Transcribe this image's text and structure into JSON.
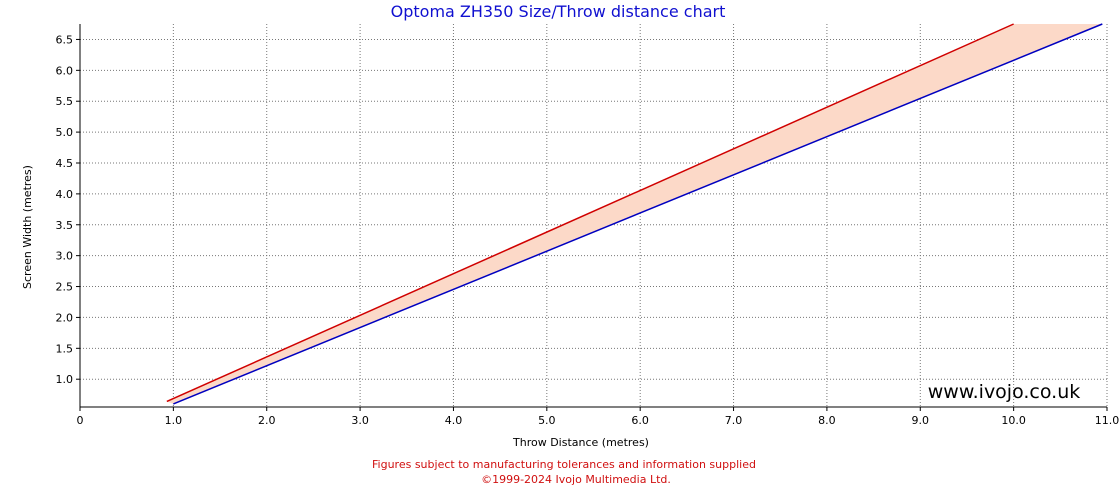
{
  "chart_data": {
    "type": "area",
    "title": "Optoma ZH350 Size/Throw distance chart",
    "xlabel": "Throw Distance (metres)",
    "ylabel": "Screen Width (metres)",
    "xlim": [
      0,
      11.0
    ],
    "ylim": [
      0.55,
      6.75
    ],
    "x_ticks": [
      0,
      1.0,
      2.0,
      3.0,
      4.0,
      5.0,
      6.0,
      7.0,
      8.0,
      9.0,
      10.0,
      11.0
    ],
    "x_tick_labels": [
      "0",
      "1.0",
      "2.0",
      "3.0",
      "4.0",
      "5.0",
      "6.0",
      "7.0",
      "8.0",
      "9.0",
      "10.0",
      "11.0"
    ],
    "y_ticks": [
      1.0,
      1.5,
      2.0,
      2.5,
      3.0,
      3.5,
      4.0,
      4.5,
      5.0,
      5.5,
      6.0,
      6.5
    ],
    "y_tick_labels": [
      "1.0",
      "1.5",
      "2.0",
      "2.5",
      "3.0",
      "3.5",
      "4.0",
      "4.5",
      "5.0",
      "5.5",
      "6.0",
      "6.5"
    ],
    "grid": true,
    "series": [
      {
        "color": "#d00000",
        "x": [
          0.93,
          10.0
        ],
        "y": [
          0.64,
          6.75
        ]
      },
      {
        "color": "#0000c0",
        "x": [
          1.0,
          10.95
        ],
        "y": [
          0.6,
          6.75
        ]
      }
    ],
    "fill_color": "#fcd9c8",
    "watermark": "www.ivojo.co.uk",
    "footer_line1": "Figures subject to manufacturing tolerances and information supplied",
    "footer_line2": "©1999-2024 Ivojo Multimedia Ltd."
  }
}
